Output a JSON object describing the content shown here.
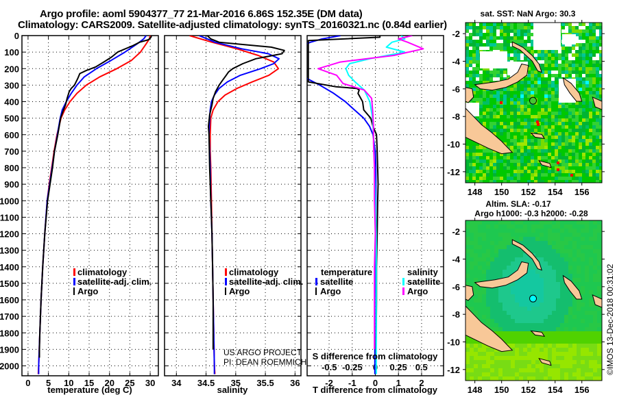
{
  "header": {
    "title_line1": "Argo profile: aoml 5904377_77 21-Mar-2016 6.86S 152.35E (DM data)",
    "title_line2": "Climatology: CARS2009. Satellite-adjusted climatology: synTS_20160321.nc (0.84d earlier)"
  },
  "colors": {
    "climatology": "#ff0000",
    "satellite": "#0000ff",
    "argo": "#000000",
    "salinity_satellite": "#00ffff",
    "salinity_argo": "#ff00ff",
    "land": "#f8c898"
  },
  "credits": {
    "project": "US ARGO PROJECT",
    "pi": "PI: DEAN ROEMMICH",
    "stamp": "©IMOS 13-Dec-2018 00:31:02"
  },
  "chart_data": [
    {
      "type": "line",
      "name": "temperature-profile",
      "xlabel": "temperature (deg C)",
      "ylabel": "",
      "xlim": [
        -1.5,
        32
      ],
      "ylim": [
        2060,
        0
      ],
      "xticks": [
        0,
        5,
        10,
        15,
        20,
        25,
        30
      ],
      "yticks": [
        0,
        100,
        200,
        300,
        400,
        500,
        600,
        700,
        800,
        900,
        1000,
        1100,
        1200,
        1300,
        1400,
        1500,
        1600,
        1700,
        1800,
        1900,
        2000
      ],
      "grid": true,
      "legend": {
        "position": "lower-right",
        "entries": [
          "climatology",
          "satellite-adj. clim.",
          "Argo"
        ]
      },
      "series": [
        {
          "name": "climatology",
          "color": "#ff0000",
          "depth": [
            0,
            20,
            50,
            100,
            150,
            200,
            250,
            300,
            350,
            400,
            450,
            500,
            600,
            700,
            800,
            900,
            1000,
            1200,
            1400,
            1600,
            1800,
            2000,
            2050
          ],
          "values": [
            30.0,
            29.8,
            29.0,
            27.6,
            25.4,
            21.8,
            17.6,
            14.3,
            12.0,
            10.3,
            9.0,
            8.1,
            7.1,
            6.4,
            5.8,
            5.2,
            4.7,
            4.1,
            3.6,
            3.2,
            2.9,
            2.6,
            2.5
          ]
        },
        {
          "name": "satellite-adj. clim.",
          "color": "#0000ff",
          "depth": [
            0,
            20,
            50,
            100,
            150,
            200,
            250,
            300,
            350,
            400,
            450,
            500,
            600,
            700,
            800,
            900,
            1000,
            1200,
            1400,
            1600,
            1800,
            2000,
            2050
          ],
          "values": [
            29.0,
            28.4,
            26.8,
            23.8,
            20.4,
            16.8,
            13.8,
            12.0,
            10.6,
            9.4,
            8.4,
            7.9,
            7.2,
            6.5,
            5.9,
            5.3,
            4.7,
            4.1,
            3.6,
            3.2,
            2.9,
            2.6,
            2.6
          ]
        },
        {
          "name": "Argo",
          "color": "#000000",
          "depth": [
            0,
            10,
            25,
            40,
            60,
            100,
            130,
            160,
            190,
            210,
            230,
            260,
            300,
            320,
            340,
            380,
            420,
            450,
            500,
            600,
            700,
            800,
            900,
            1000,
            1200,
            1400,
            1600,
            1800,
            1900,
            1950
          ],
          "values": [
            30.3,
            30.2,
            29.6,
            27.4,
            25.8,
            22.0,
            20.5,
            18.6,
            16.6,
            14.4,
            12.7,
            12.2,
            11.4,
            10.6,
            10.1,
            9.6,
            9.2,
            8.7,
            8.0,
            7.3,
            6.5,
            6.0,
            5.4,
            4.8,
            4.1,
            3.6,
            3.2,
            2.9,
            2.8,
            2.8
          ]
        }
      ]
    },
    {
      "type": "line",
      "name": "salinity-profile",
      "xlabel": "salinity",
      "xlim": [
        33.8,
        36.1
      ],
      "ylim": [
        2060,
        0
      ],
      "xticks": [
        34,
        34.5,
        35,
        35.5,
        36
      ],
      "grid": true,
      "legend": {
        "position": "lower-right",
        "entries": [
          "climatology",
          "satellite-adj. clim.",
          "Argo"
        ]
      },
      "series": [
        {
          "name": "climatology",
          "color": "#ff0000",
          "depth": [
            0,
            40,
            80,
            120,
            160,
            200,
            240,
            280,
            320,
            360,
            400,
            450,
            500,
            600,
            700,
            800,
            1000,
            1200,
            1400,
            1600,
            1800,
            2000,
            2050
          ],
          "values": [
            34.22,
            34.6,
            35.02,
            35.38,
            35.64,
            35.72,
            35.56,
            35.28,
            35.02,
            34.82,
            34.7,
            34.62,
            34.58,
            34.57,
            34.57,
            34.58,
            34.59,
            34.6,
            34.61,
            34.62,
            34.63,
            34.64,
            34.65
          ]
        },
        {
          "name": "satellite-adj. clim.",
          "color": "#0000ff",
          "depth": [
            0,
            20,
            40,
            80,
            110,
            140,
            170,
            200,
            240,
            280,
            320,
            360,
            400,
            450,
            500,
            600,
            700,
            800,
            1000,
            1200,
            1400,
            1600,
            1800,
            2000,
            2050
          ],
          "values": [
            34.38,
            34.52,
            34.65,
            35.1,
            35.55,
            35.73,
            35.64,
            35.42,
            35.08,
            34.86,
            34.72,
            34.64,
            34.59,
            34.57,
            34.56,
            34.55,
            34.56,
            34.57,
            34.58,
            34.6,
            34.61,
            34.62,
            34.63,
            34.64,
            34.64
          ]
        },
        {
          "name": "Argo",
          "color": "#000000",
          "depth": [
            0,
            20,
            40,
            70,
            90,
            110,
            140,
            170,
            200,
            220,
            240,
            270,
            300,
            340,
            380,
            420,
            480,
            550,
            600,
            800,
            1000,
            1200,
            1400,
            1600,
            1800,
            1900
          ],
          "values": [
            34.52,
            34.58,
            34.72,
            35.6,
            35.82,
            35.78,
            35.34,
            35.12,
            34.95,
            34.88,
            34.84,
            34.78,
            34.72,
            34.66,
            34.62,
            34.6,
            34.56,
            34.54,
            34.55,
            34.56,
            34.58,
            34.6,
            34.61,
            34.62,
            34.62,
            34.62
          ]
        }
      ]
    },
    {
      "type": "line",
      "name": "difference-profile",
      "xlabel": "T difference from climatology",
      "x2label": "S difference from climatology",
      "xlim": [
        -2.95,
        2.95
      ],
      "x2lim": [
        -0.74,
        0.74
      ],
      "ylim": [
        2060,
        0
      ],
      "xticks": [
        -2,
        -1,
        0,
        1,
        2
      ],
      "x2ticks": [
        -0.5,
        -0.25,
        0,
        0.25,
        0.5
      ],
      "x2ticklabels": [
        "-0.5",
        "-0.25",
        "0",
        "0.25",
        "0.5"
      ],
      "grid": true,
      "legend": {
        "position": "lower-center",
        "temperature_title": "temperature",
        "salinity_title": "salinity",
        "temperature_entries": [
          "satellite",
          "Argo"
        ],
        "salinity_entries": [
          "satellite",
          "Argo"
        ]
      },
      "series": [
        {
          "name": "T satellite",
          "axis": "T",
          "color": "#0000ff",
          "depth": [
            0,
            20,
            40,
            60,
            250,
            300,
            350,
            400,
            450,
            500,
            550,
            600,
            700,
            800,
            1000,
            1200,
            1400,
            1600,
            1800,
            2000,
            2050
          ],
          "values": [
            -1.5,
            -2.3,
            -2.8,
            -3.2,
            -3.1,
            -2.4,
            -1.8,
            -1.3,
            -0.9,
            -0.5,
            -0.25,
            -0.1,
            0.0,
            0.02,
            0.02,
            0.02,
            0.0,
            -0.02,
            -0.02,
            -0.02,
            -0.02
          ]
        },
        {
          "name": "T Argo",
          "axis": "T",
          "color": "#000000",
          "depth": [
            0,
            10,
            30,
            280,
            310,
            320,
            330,
            350,
            400,
            450,
            500,
            550,
            600,
            700,
            800,
            900,
            1000,
            1200,
            1400,
            1600,
            1800,
            1900,
            1950
          ],
          "values": [
            0.2,
            0.2,
            -2.9,
            -2.9,
            -1.7,
            -0.8,
            -0.7,
            -0.75,
            -0.55,
            -0.5,
            -0.2,
            -0.1,
            0.05,
            0.08,
            0.1,
            0.12,
            0.1,
            0.08,
            0.05,
            0.05,
            0.04,
            0.03,
            0.03
          ]
        },
        {
          "name": "S satellite",
          "axis": "S",
          "color": "#00ffff",
          "depth": [
            0,
            20,
            40,
            70,
            100,
            140,
            170,
            200,
            240,
            280,
            330,
            400,
            500,
            600,
            800,
            1000,
            1200,
            1400,
            1600,
            1800,
            2000,
            2050
          ],
          "values": [
            0.28,
            0.32,
            0.18,
            0.12,
            0.32,
            -0.06,
            -0.28,
            -0.32,
            -0.29,
            -0.22,
            -0.12,
            -0.06,
            -0.03,
            -0.02,
            -0.01,
            0.0,
            0.01,
            0.01,
            0.01,
            0.01,
            0.01,
            0.01
          ]
        },
        {
          "name": "S Argo",
          "axis": "S",
          "color": "#ff00ff",
          "depth": [
            0,
            20,
            40,
            80,
            120,
            160,
            200,
            240,
            290,
            330,
            380,
            450,
            550,
            650,
            800,
            1000,
            1200,
            1400,
            1600,
            1800,
            1900
          ],
          "values": [
            0.4,
            0.25,
            0.35,
            0.52,
            0.2,
            -0.38,
            -0.62,
            -0.42,
            -0.35,
            -0.12,
            -0.04,
            -0.03,
            -0.02,
            -0.02,
            -0.01,
            -0.01,
            0.0,
            -0.01,
            -0.01,
            -0.01,
            -0.01
          ]
        }
      ]
    },
    {
      "type": "heatmap",
      "name": "sst-map",
      "title": "sat. SST: NaN Argo: 30.3",
      "xlim": [
        147.3,
        157.5
      ],
      "ylim": [
        -12.8,
        -1.2
      ],
      "xticks": [
        148,
        150,
        152,
        154,
        156
      ],
      "yticks": [
        -2,
        -4,
        -6,
        -8,
        -10,
        -12
      ],
      "marker": {
        "lon": 152.35,
        "lat": -6.86
      }
    },
    {
      "type": "heatmap",
      "name": "sla-map",
      "title": "Altim. SLA: -0.17",
      "subtitle": "Argo h1000: -0.3 h2000: -0.28",
      "xlim": [
        147.3,
        157.5
      ],
      "ylim": [
        -12.8,
        -1.2
      ],
      "xticks": [
        148,
        150,
        152,
        154,
        156
      ],
      "yticks": [
        -2,
        -4,
        -6,
        -8,
        -10,
        -12
      ],
      "marker": {
        "lon": 152.35,
        "lat": -6.86
      }
    }
  ]
}
